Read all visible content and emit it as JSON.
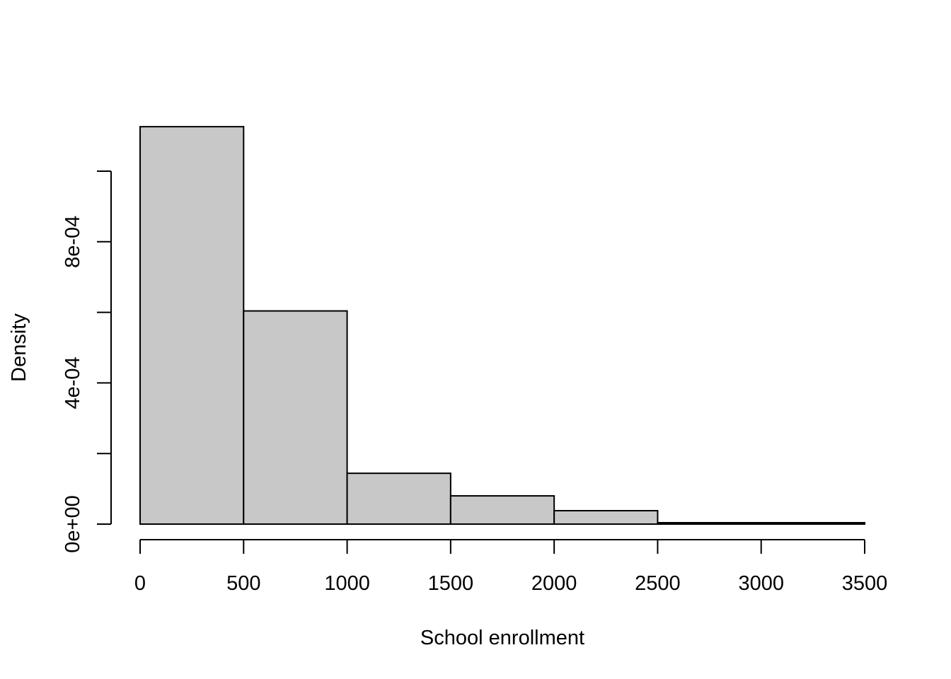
{
  "chart_data": {
    "type": "bar",
    "histogram": true,
    "bins": [
      {
        "x0": 0,
        "x1": 500,
        "density": 0.001126
      },
      {
        "x0": 500,
        "x1": 1000,
        "density": 0.000604
      },
      {
        "x0": 1000,
        "x1": 1500,
        "density": 0.000144
      },
      {
        "x0": 1500,
        "x1": 2000,
        "density": 8e-05
      },
      {
        "x0": 2000,
        "x1": 2500,
        "density": 3.8e-05
      },
      {
        "x0": 2500,
        "x1": 3000,
        "density": 4e-06
      },
      {
        "x0": 3000,
        "x1": 3500,
        "density": 4e-06
      }
    ],
    "xlabel": "School enrollment",
    "ylabel": "Density",
    "xlim": [
      0,
      3500
    ],
    "ylim": [
      0,
      0.001
    ],
    "x_ticks": [
      {
        "value": 0,
        "label": "0"
      },
      {
        "value": 500,
        "label": "500"
      },
      {
        "value": 1000,
        "label": "1000"
      },
      {
        "value": 1500,
        "label": "1500"
      },
      {
        "value": 2000,
        "label": "2000"
      },
      {
        "value": 2500,
        "label": "2500"
      },
      {
        "value": 3000,
        "label": "3000"
      },
      {
        "value": 3500,
        "label": "3500"
      }
    ],
    "y_ticks": [
      {
        "value": 0,
        "label": "0e+00"
      },
      {
        "value": 0.0002,
        "label": ""
      },
      {
        "value": 0.0004,
        "label": "4e-04"
      },
      {
        "value": 0.0006,
        "label": ""
      },
      {
        "value": 0.0008,
        "label": "8e-04"
      },
      {
        "value": 0.001,
        "label": ""
      }
    ],
    "bar_fill": "#c8c8c8",
    "bar_stroke": "#000000",
    "grid": false
  }
}
